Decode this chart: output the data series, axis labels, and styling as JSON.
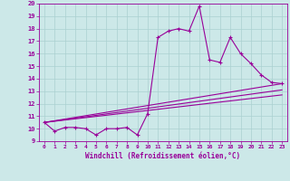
{
  "xlabel": "Windchill (Refroidissement éolien,°C)",
  "background_color": "#cce8e8",
  "grid_color": "#aad0d0",
  "line_color": "#990099",
  "x_hours": [
    0,
    1,
    2,
    3,
    4,
    5,
    6,
    7,
    8,
    9,
    10,
    11,
    12,
    13,
    14,
    15,
    16,
    17,
    18,
    19,
    20,
    21,
    22,
    23
  ],
  "windchill": [
    10.5,
    9.8,
    10.1,
    10.1,
    10.0,
    9.5,
    10.0,
    10.0,
    10.1,
    9.5,
    11.2,
    17.3,
    17.8,
    18.0,
    17.8,
    19.8,
    15.5,
    15.3,
    17.3,
    16.0,
    15.2,
    14.3,
    13.7,
    13.6
  ],
  "trend_lines": [
    [
      [
        0,
        10.5
      ],
      [
        23,
        13.6
      ]
    ],
    [
      [
        0,
        10.5
      ],
      [
        23,
        13.1
      ]
    ],
    [
      [
        0,
        10.5
      ],
      [
        23,
        12.7
      ]
    ]
  ],
  "ylim": [
    9,
    20
  ],
  "xlim": [
    -0.5,
    23.5
  ],
  "yticks": [
    9,
    10,
    11,
    12,
    13,
    14,
    15,
    16,
    17,
    18,
    19,
    20
  ],
  "xticks": [
    0,
    1,
    2,
    3,
    4,
    5,
    6,
    7,
    8,
    9,
    10,
    11,
    12,
    13,
    14,
    15,
    16,
    17,
    18,
    19,
    20,
    21,
    22,
    23
  ]
}
